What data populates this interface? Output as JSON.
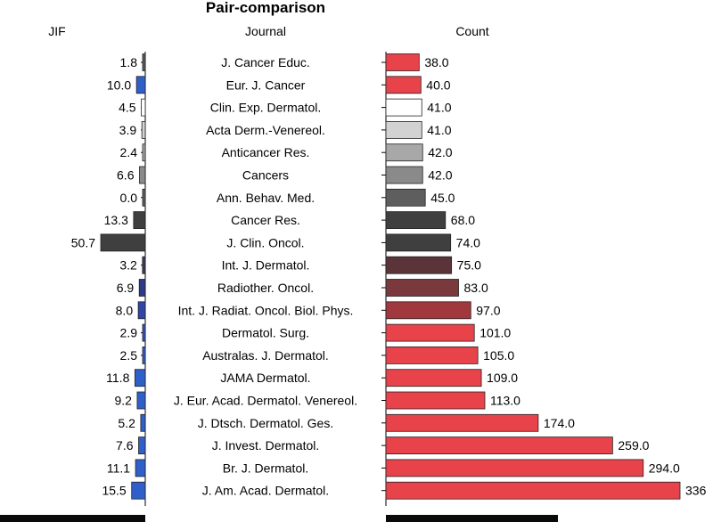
{
  "chart_data": {
    "type": "bar",
    "title": "Pair-comparison",
    "columns": {
      "left": "JIF",
      "center": "Journal",
      "right": "Count"
    },
    "rows": [
      {
        "journal": "J. Cancer Educ.",
        "jif": "1.8",
        "count": "38.0",
        "jif_color": "#5a5a5a",
        "count_color": "#e8434a"
      },
      {
        "journal": "Eur. J. Cancer",
        "jif": "10.0",
        "count": "40.0",
        "jif_color": "#2f5fc9",
        "count_color": "#e8434a"
      },
      {
        "journal": "Clin. Exp. Dermatol.",
        "jif": "4.5",
        "count": "41.0",
        "jif_color": "#ffffff",
        "count_color": "#ffffff"
      },
      {
        "journal": "Acta Derm.-Venereol.",
        "jif": "3.9",
        "count": "41.0",
        "jif_color": "#d2d2d2",
        "count_color": "#d2d2d2"
      },
      {
        "journal": "Anticancer Res.",
        "jif": "2.4",
        "count": "42.0",
        "jif_color": "#a8a8a8",
        "count_color": "#a8a8a8"
      },
      {
        "journal": "Cancers",
        "jif": "6.6",
        "count": "42.0",
        "jif_color": "#8a8a8a",
        "count_color": "#8a8a8a"
      },
      {
        "journal": "Ann. Behav. Med.",
        "jif": "0.0",
        "count": "45.0",
        "jif_color": "#5e5e5e",
        "count_color": "#5e5e5e"
      },
      {
        "journal": "Cancer Res.",
        "jif": "13.3",
        "count": "68.0",
        "jif_color": "#3f3f3f",
        "count_color": "#3f3f3f"
      },
      {
        "journal": "J. Clin. Oncol.",
        "jif": "50.7",
        "count": "74.0",
        "jif_color": "#3f3f3f",
        "count_color": "#3f3f3f"
      },
      {
        "journal": "Int. J. Dermatol.",
        "jif": "3.2",
        "count": "75.0",
        "jif_color": "#3a3a55",
        "count_color": "#5a3438"
      },
      {
        "journal": "Radiother. Oncol.",
        "jif": "6.9",
        "count": "83.0",
        "jif_color": "#2f3a8a",
        "count_color": "#7a393c"
      },
      {
        "journal": "Int. J. Radiat. Oncol. Biol. Phys.",
        "jif": "8.0",
        "count": "97.0",
        "jif_color": "#2f45a8",
        "count_color": "#a0383d"
      },
      {
        "journal": "Dermatol. Surg.",
        "jif": "2.9",
        "count": "101.0",
        "jif_color": "#2f55c0",
        "count_color": "#e8434a"
      },
      {
        "journal": "Australas. J. Dermatol.",
        "jif": "2.5",
        "count": "105.0",
        "jif_color": "#2f5fc9",
        "count_color": "#e8434a"
      },
      {
        "journal": "JAMA Dermatol.",
        "jif": "11.8",
        "count": "109.0",
        "jif_color": "#2f5fc9",
        "count_color": "#e8434a"
      },
      {
        "journal": "J. Eur. Acad. Dermatol. Venereol.",
        "jif": "9.2",
        "count": "113.0",
        "jif_color": "#2f5fc9",
        "count_color": "#e8434a"
      },
      {
        "journal": "J. Dtsch. Dermatol. Ges.",
        "jif": "5.2",
        "count": "174.0",
        "jif_color": "#2f5fc9",
        "count_color": "#e8434a"
      },
      {
        "journal": "J. Invest. Dermatol.",
        "jif": "7.6",
        "count": "259.0",
        "jif_color": "#2f5fc9",
        "count_color": "#e8434a"
      },
      {
        "journal": "Br. J. Dermatol.",
        "jif": "11.1",
        "count": "294.0",
        "jif_color": "#2f5fc9",
        "count_color": "#e8434a"
      },
      {
        "journal": "J. Am. Acad. Dermatol.",
        "jif": "15.5",
        "count": "336",
        "jif_color": "#2f5fc9",
        "count_color": "#e8434a"
      }
    ],
    "jif_axis_max": 50.7,
    "count_axis_max": 336
  }
}
